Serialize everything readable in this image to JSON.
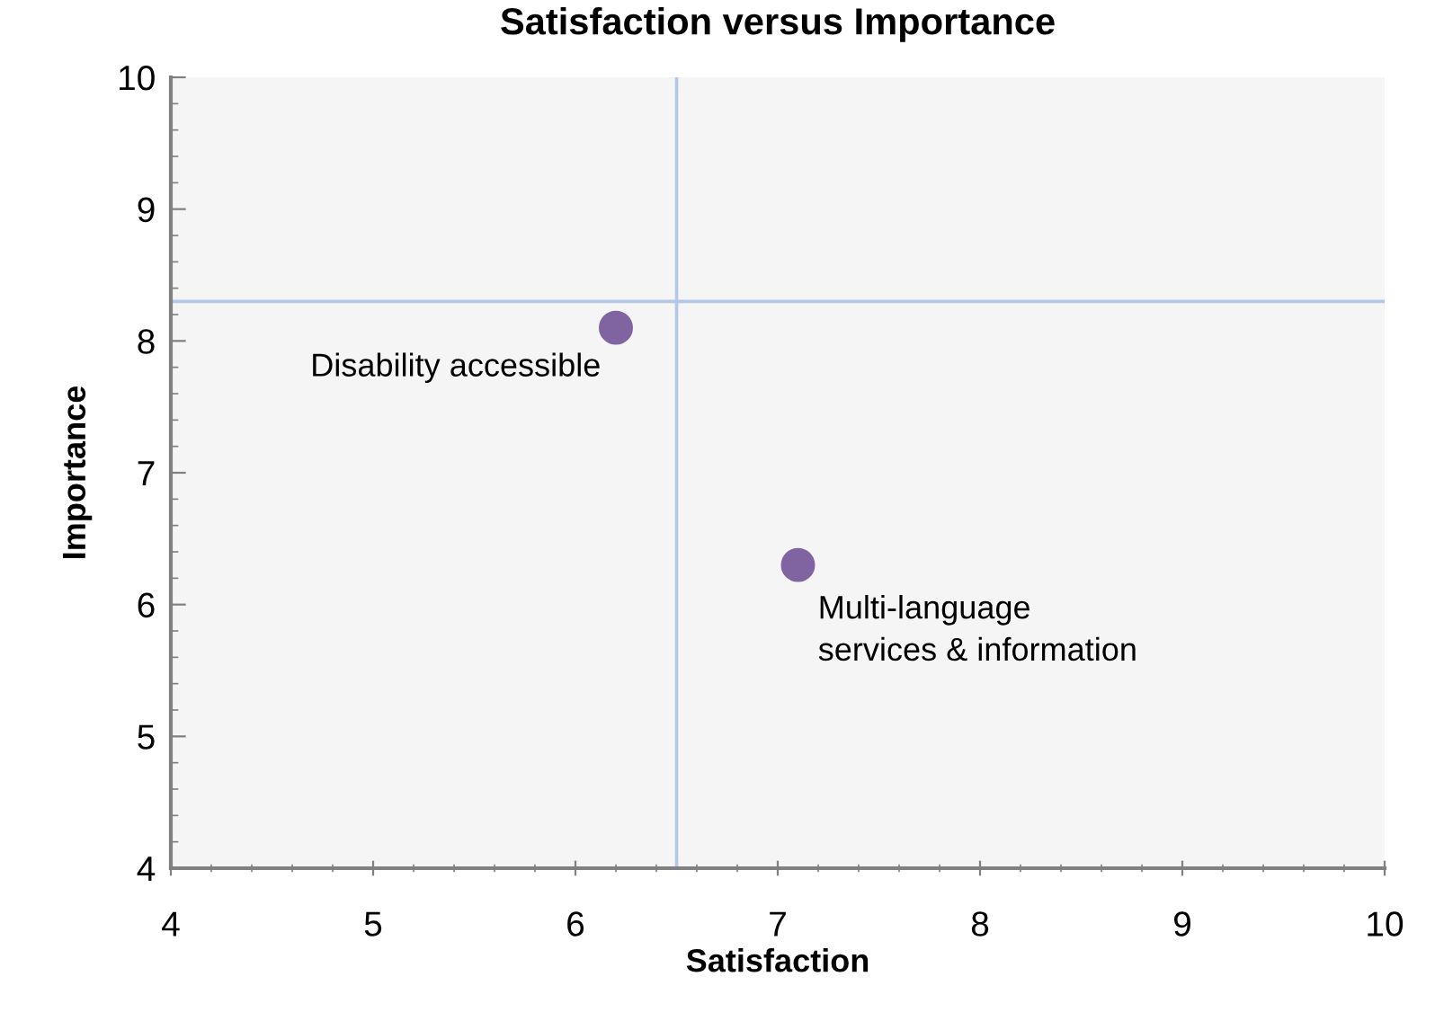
{
  "chart_data": {
    "type": "scatter",
    "title": "Satisfaction versus Importance",
    "xlabel": "Satisfaction",
    "ylabel": "Importance",
    "x": [
      6.2,
      7.1
    ],
    "series": [
      {
        "color": "#8064a2",
        "values": [
          8.1,
          6.3
        ]
      }
    ],
    "annotations": [
      {
        "text": "Disability accessible",
        "x": 6.2,
        "y": 8.1
      },
      {
        "text": "Multi-language\nservices & information",
        "x": 7.1,
        "y": 6.3
      }
    ],
    "ref_lines": [
      {
        "axis": "x",
        "value": 6.5,
        "color": "#b4c7e7"
      },
      {
        "axis": "y",
        "value": 8.3,
        "color": "#b4c7e7"
      }
    ],
    "xlim": [
      4,
      10
    ],
    "ylim": [
      4,
      10
    ],
    "xticks": [
      4,
      5,
      6,
      7,
      8,
      9,
      10
    ],
    "yticks": [
      4,
      5,
      6,
      7,
      8,
      9,
      10
    ],
    "marker": "circle",
    "grid": false,
    "legend": false
  }
}
